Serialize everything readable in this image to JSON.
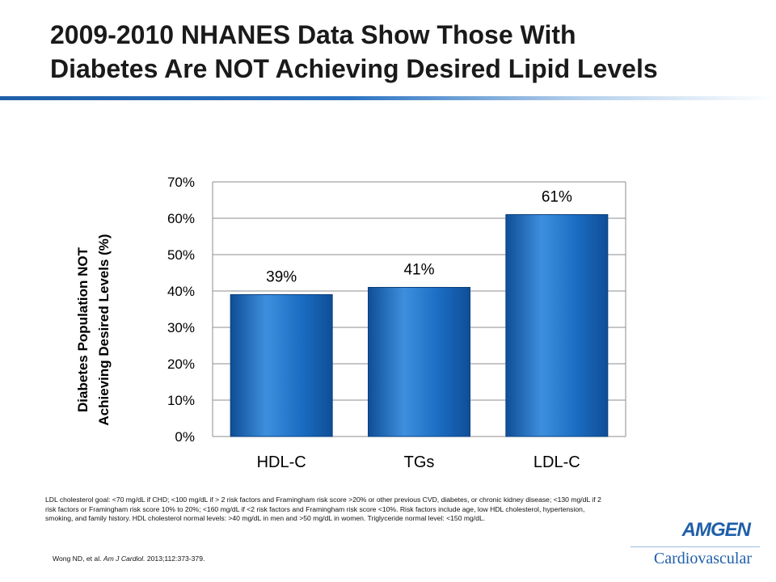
{
  "slide": {
    "title_line1": "2009-2010 NHANES Data Show Those With",
    "title_line2": "Diabetes Are NOT Achieving Desired Lipid Levels"
  },
  "chart_data": {
    "type": "bar",
    "categories": [
      "HDL-C",
      "TGs",
      "LDL-C"
    ],
    "values": [
      39,
      41,
      61
    ],
    "data_labels": [
      "39%",
      "41%",
      "61%"
    ],
    "ylabel_line1": "Diabetes Population NOT",
    "ylabel_line2": "Achieving Desired Levels (%)",
    "ylim": [
      0,
      70
    ],
    "yticks": [
      0,
      10,
      20,
      30,
      40,
      50,
      60,
      70
    ],
    "ytick_labels": [
      "0%",
      "10%",
      "20%",
      "30%",
      "40%",
      "50%",
      "60%",
      "70%"
    ],
    "grid": true,
    "colors": {
      "bar": "#1a6cc2",
      "bar_dark": "#0f4e96",
      "bar_light": "#3d8fde"
    }
  },
  "footnote": "LDL cholesterol goal: <70 mg/dL if CHD; <100 mg/dL if > 2 risk factors and Framingham risk score >20% or other previous CVD, diabetes, or chronic kidney disease; <130 mg/dL if 2 risk factors or Framingham risk score 10% to 20%; <160 mg/dL if <2 risk factors and Framingham risk score <10%. Risk factors include age, low HDL cholesterol, hypertension, smoking, and family history. HDL cholesterol normal levels: >40 mg/dL in men and >50 mg/dL in women. Triglyceride normal level: <150 mg/dL.",
  "citation": {
    "authors": "Wong ND, et al. ",
    "journal": "Am J Cardiol.",
    "details": " 2013;112:373-379."
  },
  "brand": {
    "name": "AMGEN",
    "division": "Cardiovascular",
    "color": "#1f5fa8"
  }
}
